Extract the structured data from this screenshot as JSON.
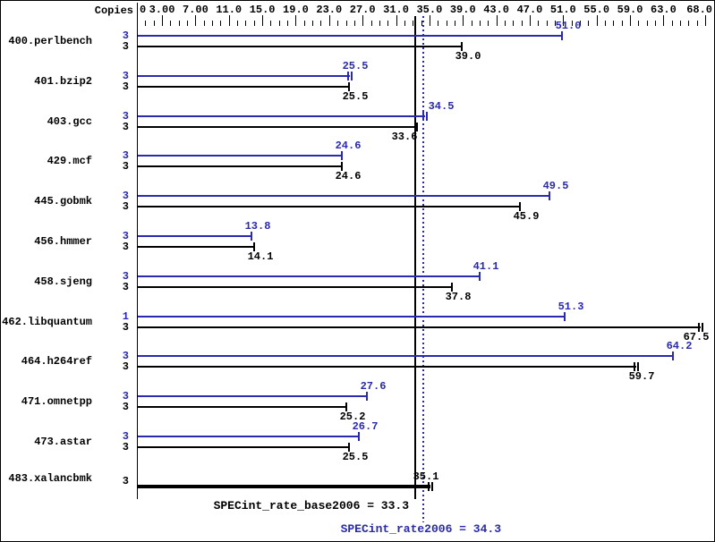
{
  "header": {
    "copies_label": "Copies"
  },
  "chart_data": {
    "type": "bar",
    "orientation": "horizontal",
    "axis": {
      "min": 0,
      "max": 68,
      "minor_tick_interval": 1,
      "ticks": [
        {
          "value": 0,
          "label": "0"
        },
        {
          "value": 3,
          "label": "3.00"
        },
        {
          "value": 7,
          "label": "7.00"
        },
        {
          "value": 11,
          "label": "11.0"
        },
        {
          "value": 15,
          "label": "15.0"
        },
        {
          "value": 19,
          "label": "19.0"
        },
        {
          "value": 23,
          "label": "23.0"
        },
        {
          "value": 27,
          "label": "27.0"
        },
        {
          "value": 31,
          "label": "31.0"
        },
        {
          "value": 35,
          "label": "35.0"
        },
        {
          "value": 39,
          "label": "39.0"
        },
        {
          "value": 43,
          "label": "43.0"
        },
        {
          "value": 47,
          "label": "47.0"
        },
        {
          "value": 51,
          "label": "51.0"
        },
        {
          "value": 55,
          "label": "55.0"
        },
        {
          "value": 59,
          "label": "59.0"
        },
        {
          "value": 63,
          "label": "63.0"
        },
        {
          "value": 68,
          "label": "68.0"
        }
      ]
    },
    "colors": {
      "peak": "#2a2aae",
      "base": "#000000"
    },
    "benchmarks": [
      {
        "name": "400.perlbench",
        "bars": [
          {
            "series": "peak",
            "copies": "3",
            "value": 51.0,
            "label": "51.0",
            "end_marker": "single"
          },
          {
            "series": "base",
            "copies": "3",
            "value": 39.0,
            "label": "39.0",
            "end_marker": "single"
          }
        ]
      },
      {
        "name": "401.bzip2",
        "bars": [
          {
            "series": "peak",
            "copies": "3",
            "value": 25.5,
            "label": "25.5",
            "end_marker": "double"
          },
          {
            "series": "base",
            "copies": "3",
            "value": 25.5,
            "label": "25.5",
            "end_marker": "single"
          }
        ]
      },
      {
        "name": "403.gcc",
        "bars": [
          {
            "series": "peak",
            "copies": "3",
            "value": 34.5,
            "label": "34.5",
            "end_marker": "double"
          },
          {
            "series": "base",
            "copies": "3",
            "value": 33.6,
            "label": "33.6",
            "end_marker": "single"
          }
        ]
      },
      {
        "name": "429.mcf",
        "bars": [
          {
            "series": "peak",
            "copies": "3",
            "value": 24.6,
            "label": "24.6",
            "end_marker": "single"
          },
          {
            "series": "base",
            "copies": "3",
            "value": 24.6,
            "label": "24.6",
            "end_marker": "single"
          }
        ]
      },
      {
        "name": "445.gobmk",
        "bars": [
          {
            "series": "peak",
            "copies": "3",
            "value": 49.5,
            "label": "49.5",
            "end_marker": "single"
          },
          {
            "series": "base",
            "copies": "3",
            "value": 45.9,
            "label": "45.9",
            "end_marker": "single"
          }
        ]
      },
      {
        "name": "456.hmmer",
        "bars": [
          {
            "series": "peak",
            "copies": "3",
            "value": 13.8,
            "label": "13.8",
            "end_marker": "single"
          },
          {
            "series": "base",
            "copies": "3",
            "value": 14.1,
            "label": "14.1",
            "end_marker": "single"
          }
        ]
      },
      {
        "name": "458.sjeng",
        "bars": [
          {
            "series": "peak",
            "copies": "3",
            "value": 41.1,
            "label": "41.1",
            "end_marker": "single"
          },
          {
            "series": "base",
            "copies": "3",
            "value": 37.8,
            "label": "37.8",
            "end_marker": "single"
          }
        ]
      },
      {
        "name": "462.libquantum",
        "bars": [
          {
            "series": "peak",
            "copies": "1",
            "value": 51.3,
            "label": "51.3",
            "end_marker": "single"
          },
          {
            "series": "base",
            "copies": "3",
            "value": 67.5,
            "label": "67.5",
            "end_marker": "double"
          }
        ]
      },
      {
        "name": "464.h264ref",
        "bars": [
          {
            "series": "peak",
            "copies": "3",
            "value": 64.2,
            "label": "64.2",
            "end_marker": "single"
          },
          {
            "series": "base",
            "copies": "3",
            "value": 59.7,
            "label": "59.7",
            "end_marker": "double"
          }
        ]
      },
      {
        "name": "471.omnetpp",
        "bars": [
          {
            "series": "peak",
            "copies": "3",
            "value": 27.6,
            "label": "27.6",
            "end_marker": "single"
          },
          {
            "series": "base",
            "copies": "3",
            "value": 25.2,
            "label": "25.2",
            "end_marker": "single"
          }
        ]
      },
      {
        "name": "473.astar",
        "bars": [
          {
            "series": "peak",
            "copies": "3",
            "value": 26.7,
            "label": "26.7",
            "end_marker": "single"
          },
          {
            "series": "base",
            "copies": "3",
            "value": 25.5,
            "label": "25.5",
            "end_marker": "single"
          }
        ]
      },
      {
        "name": "483.xalancbmk",
        "bars": [
          {
            "series": "base",
            "copies": "3",
            "value": 35.1,
            "label": "35.1",
            "end_marker": "double",
            "thick": true
          }
        ]
      }
    ],
    "reference_lines": [
      {
        "name": "SPECint_rate_base2006",
        "value": 33.3,
        "label": "SPECint_rate_base2006 = 33.3",
        "style": "solid",
        "color": "#000000"
      },
      {
        "name": "SPECint_rate2006",
        "value": 34.3,
        "label": "SPECint_rate2006 = 34.3",
        "style": "dotted",
        "color": "#2a2aae"
      }
    ]
  }
}
